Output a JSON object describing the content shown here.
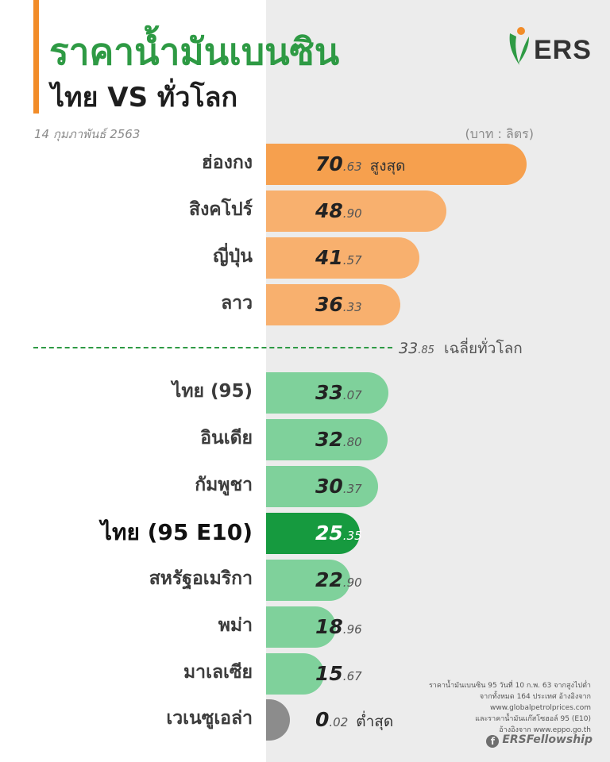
{
  "header": {
    "title_line1": "ราคาน้ำมันเบนซิน",
    "title_line2": "ไทย VS ทั่วโลก",
    "date": "14 กุมภาพันธ์ 2563",
    "unit": "(บาท : ลิตร)"
  },
  "brand": {
    "logo_text": "ERS",
    "facebook": "ERSFellowship"
  },
  "average": {
    "int": "33",
    "dec": ".85",
    "label": "เฉลี่ยทั่วโลก",
    "value": 33.85
  },
  "colors": {
    "orange": "#f8b06e",
    "orange_top": "#f6a04e",
    "green": "#7fd19b",
    "green_highlight": "#169a3f",
    "gray": "#8c8c8c",
    "title_green": "#2e9a44",
    "accent": "#f28c28"
  },
  "chart_data": {
    "type": "bar",
    "orientation": "horizontal",
    "categories": [
      "ฮ่องกง",
      "สิงคโปร์",
      "ญี่ปุ่น",
      "ลาว",
      "ไทย (95)",
      "อินเดีย",
      "กัมพูชา",
      "ไทย (95 E10)",
      "สหรัฐอเมริกา",
      "พม่า",
      "มาเลเซีย",
      "เวเนซูเอล่า"
    ],
    "values": [
      70.63,
      48.9,
      41.57,
      36.33,
      33.07,
      32.8,
      30.37,
      25.35,
      22.9,
      18.96,
      15.67,
      0.02
    ],
    "ints": [
      "70",
      "48",
      "41",
      "36",
      "33",
      "32",
      "30",
      "25",
      "22",
      "18",
      "15",
      "0"
    ],
    "decs": [
      ".63",
      ".90",
      ".57",
      ".33",
      ".07",
      ".80",
      ".37",
      ".35",
      ".90",
      ".96",
      ".67",
      ".02"
    ],
    "notes": [
      "สูงสุด",
      "",
      "",
      "",
      "",
      "",
      "",
      "",
      "",
      "",
      "",
      "ต่ำสุด"
    ],
    "groups": [
      "orange",
      "orange",
      "orange",
      "orange",
      "green",
      "green",
      "green",
      "green",
      "green",
      "green",
      "green",
      "gray"
    ],
    "highlight_index": 7
  },
  "source_lines": [
    "ราคาน้ำมันเบนซิน 95 วันที่ 10 ก.พ. 63 จากสูงไปต่ำ",
    "จากทั้งหมด 164 ประเทศ อ้างอิงจาก",
    "www.globalpetrolprices.com",
    "และราคาน้ำมันแก๊สโซฮอล์ 95 (E10)",
    "อ้างอิงจาก www.eppo.go.th"
  ]
}
